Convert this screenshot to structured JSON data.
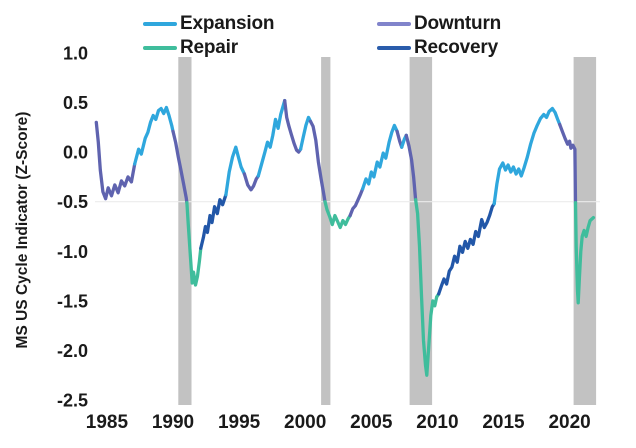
{
  "legend": {
    "items": [
      {
        "label": "Expansion",
        "phase": "expansion"
      },
      {
        "label": "Repair",
        "phase": "repair"
      },
      {
        "label": "Downturn",
        "phase": "downturn"
      },
      {
        "label": "Recovery",
        "phase": "recovery"
      }
    ]
  },
  "colors": {
    "expansion": "#2FA7DD",
    "repair": "#3FBD9C",
    "downturn": "#5F63AF",
    "downturn_legend": "#8184CB",
    "recovery": "#2257A8",
    "recovery_legend": "#2A5CAB",
    "recession_band": "#C2C2C2",
    "gridline": "#EBEBEB",
    "text": "#1A1A1A"
  },
  "chart_data": {
    "type": "line",
    "title": "",
    "xlabel": "",
    "ylabel": "MS US Cycle Indicator (Z-Score)",
    "x_ticks": [
      1985,
      1990,
      1995,
      2000,
      2005,
      2010,
      2015,
      2020
    ],
    "y_ticks": [
      {
        "v": 1.0,
        "label": "1.0"
      },
      {
        "v": 0.5,
        "label": "0.5"
      },
      {
        "v": 0.0,
        "label": "0.0"
      },
      {
        "v": -0.5,
        "label": "-0.5"
      },
      {
        "v": -1.0,
        "label": "-1.0"
      },
      {
        "v": -1.5,
        "label": "-1.5"
      },
      {
        "v": -2.0,
        "label": "-2.0"
      },
      {
        "v": -2.5,
        "label": "-2.5"
      }
    ],
    "xlim": [
      1984.1,
      2022.3
    ],
    "ylim": [
      -2.5,
      1.0
    ],
    "grid": "single horizontal reference line",
    "reference_line_y": -0.5,
    "legend_position": "top",
    "recession_bands": [
      [
        1990.4,
        1991.4
      ],
      [
        2001.2,
        2001.9
      ],
      [
        2007.9,
        2009.6
      ],
      [
        2020.3,
        2022.0
      ]
    ],
    "series": [
      {
        "phase": "downturn",
        "points": [
          [
            1984.2,
            0.3
          ],
          [
            1984.35,
            0.1
          ],
          [
            1984.5,
            -0.18
          ],
          [
            1984.7,
            -0.4
          ],
          [
            1984.9,
            -0.47
          ],
          [
            1985.1,
            -0.36
          ],
          [
            1985.35,
            -0.44
          ],
          [
            1985.6,
            -0.33
          ],
          [
            1985.85,
            -0.41
          ],
          [
            1986.1,
            -0.29
          ],
          [
            1986.35,
            -0.34
          ],
          [
            1986.6,
            -0.25
          ],
          [
            1986.85,
            -0.3
          ],
          [
            1987.1,
            -0.12
          ]
        ]
      },
      {
        "phase": "expansion",
        "points": [
          [
            1987.1,
            -0.12
          ],
          [
            1987.4,
            0.03
          ],
          [
            1987.6,
            -0.02
          ],
          [
            1987.9,
            0.14
          ],
          [
            1988.1,
            0.2
          ],
          [
            1988.3,
            0.3
          ],
          [
            1988.5,
            0.37
          ],
          [
            1988.7,
            0.33
          ],
          [
            1988.9,
            0.42
          ],
          [
            1989.1,
            0.44
          ],
          [
            1989.3,
            0.39
          ],
          [
            1989.5,
            0.45
          ],
          [
            1989.7,
            0.37
          ],
          [
            1989.9,
            0.27
          ],
          [
            1990.0,
            0.21
          ]
        ]
      },
      {
        "phase": "downturn",
        "points": [
          [
            1990.0,
            0.21
          ],
          [
            1990.2,
            0.1
          ],
          [
            1990.4,
            -0.05
          ],
          [
            1990.6,
            -0.18
          ],
          [
            1990.8,
            -0.32
          ],
          [
            1991.0,
            -0.46
          ],
          [
            1991.05,
            -0.51
          ]
        ]
      },
      {
        "phase": "repair",
        "points": [
          [
            1991.05,
            -0.51
          ],
          [
            1991.15,
            -0.72
          ],
          [
            1991.3,
            -1.02
          ],
          [
            1991.45,
            -1.32
          ],
          [
            1991.55,
            -1.21
          ],
          [
            1991.7,
            -1.34
          ],
          [
            1991.85,
            -1.25
          ],
          [
            1992.0,
            -1.1
          ],
          [
            1992.1,
            -0.97
          ]
        ]
      },
      {
        "phase": "recovery",
        "points": [
          [
            1992.1,
            -0.97
          ],
          [
            1992.3,
            -0.86
          ],
          [
            1992.45,
            -0.75
          ],
          [
            1992.6,
            -0.81
          ],
          [
            1992.8,
            -0.64
          ],
          [
            1992.95,
            -0.71
          ],
          [
            1993.15,
            -0.55
          ],
          [
            1993.35,
            -0.62
          ],
          [
            1993.55,
            -0.48
          ],
          [
            1993.75,
            -0.53
          ],
          [
            1994.0,
            -0.43
          ]
        ]
      },
      {
        "phase": "expansion",
        "points": [
          [
            1994.0,
            -0.43
          ],
          [
            1994.25,
            -0.2
          ],
          [
            1994.5,
            -0.05
          ],
          [
            1994.75,
            0.05
          ],
          [
            1994.95,
            -0.05
          ],
          [
            1995.15,
            -0.15
          ],
          [
            1995.4,
            -0.22
          ]
        ]
      },
      {
        "phase": "downturn",
        "points": [
          [
            1995.4,
            -0.22
          ],
          [
            1995.65,
            -0.33
          ],
          [
            1995.9,
            -0.38
          ],
          [
            1996.1,
            -0.34
          ],
          [
            1996.3,
            -0.27
          ],
          [
            1996.45,
            -0.24
          ]
        ]
      },
      {
        "phase": "expansion",
        "points": [
          [
            1996.45,
            -0.24
          ],
          [
            1996.7,
            -0.12
          ],
          [
            1996.95,
            0.0
          ],
          [
            1997.15,
            0.1
          ],
          [
            1997.35,
            0.05
          ],
          [
            1997.55,
            0.17
          ],
          [
            1997.75,
            0.33
          ],
          [
            1997.95,
            0.24
          ],
          [
            1998.15,
            0.38
          ],
          [
            1998.3,
            0.45
          ],
          [
            1998.45,
            0.52
          ]
        ]
      },
      {
        "phase": "downturn",
        "points": [
          [
            1998.45,
            0.52
          ],
          [
            1998.6,
            0.35
          ],
          [
            1998.75,
            0.27
          ],
          [
            1998.95,
            0.18
          ],
          [
            1999.15,
            0.09
          ],
          [
            1999.35,
            0.02
          ],
          [
            1999.5,
            0.0
          ],
          [
            1999.65,
            0.03
          ]
        ]
      },
      {
        "phase": "expansion",
        "points": [
          [
            1999.65,
            0.03
          ],
          [
            1999.85,
            0.15
          ],
          [
            2000.05,
            0.27
          ],
          [
            2000.25,
            0.35
          ],
          [
            2000.4,
            0.31
          ]
        ]
      },
      {
        "phase": "downturn",
        "points": [
          [
            2000.4,
            0.31
          ],
          [
            2000.6,
            0.26
          ],
          [
            2000.8,
            0.12
          ],
          [
            2001.0,
            -0.1
          ],
          [
            2001.2,
            -0.27
          ],
          [
            2001.4,
            -0.42
          ],
          [
            2001.5,
            -0.5
          ]
        ]
      },
      {
        "phase": "repair",
        "points": [
          [
            2001.5,
            -0.5
          ],
          [
            2001.65,
            -0.58
          ],
          [
            2001.85,
            -0.65
          ],
          [
            2002.05,
            -0.73
          ],
          [
            2002.25,
            -0.64
          ],
          [
            2002.45,
            -0.7
          ],
          [
            2002.65,
            -0.76
          ],
          [
            2002.85,
            -0.69
          ],
          [
            2003.05,
            -0.73
          ],
          [
            2003.25,
            -0.67
          ],
          [
            2003.4,
            -0.64
          ]
        ]
      },
      {
        "phase": "downturn",
        "points": [
          [
            2003.4,
            -0.64
          ],
          [
            2003.6,
            -0.57
          ],
          [
            2003.8,
            -0.54
          ],
          [
            2004.0,
            -0.48
          ],
          [
            2004.2,
            -0.42
          ],
          [
            2004.35,
            -0.37
          ]
        ]
      },
      {
        "phase": "expansion",
        "points": [
          [
            2004.35,
            -0.37
          ],
          [
            2004.6,
            -0.27
          ],
          [
            2004.8,
            -0.32
          ],
          [
            2005.0,
            -0.2
          ],
          [
            2005.2,
            -0.25
          ],
          [
            2005.45,
            -0.1
          ],
          [
            2005.65,
            -0.15
          ],
          [
            2005.9,
            -0.01
          ],
          [
            2006.1,
            -0.06
          ],
          [
            2006.35,
            0.1
          ],
          [
            2006.55,
            0.2
          ],
          [
            2006.75,
            0.27
          ],
          [
            2006.95,
            0.21
          ]
        ]
      },
      {
        "phase": "downturn",
        "points": [
          [
            2006.95,
            0.21
          ],
          [
            2007.15,
            0.11
          ],
          [
            2007.3,
            0.05
          ]
        ]
      },
      {
        "phase": "expansion",
        "points": [
          [
            2007.3,
            0.05
          ],
          [
            2007.5,
            0.13
          ],
          [
            2007.65,
            0.17
          ]
        ]
      },
      {
        "phase": "downturn",
        "points": [
          [
            2007.65,
            0.17
          ],
          [
            2007.85,
            0.06
          ],
          [
            2008.05,
            -0.08
          ],
          [
            2008.2,
            -0.25
          ],
          [
            2008.35,
            -0.48
          ]
        ]
      },
      {
        "phase": "repair",
        "points": [
          [
            2008.35,
            -0.48
          ],
          [
            2008.5,
            -0.62
          ],
          [
            2008.65,
            -0.95
          ],
          [
            2008.8,
            -1.45
          ],
          [
            2008.95,
            -1.9
          ],
          [
            2009.1,
            -2.15
          ],
          [
            2009.2,
            -2.25
          ],
          [
            2009.35,
            -1.95
          ],
          [
            2009.5,
            -1.65
          ],
          [
            2009.65,
            -1.5
          ],
          [
            2009.8,
            -1.55
          ],
          [
            2009.95,
            -1.46
          ],
          [
            2010.1,
            -1.43
          ]
        ]
      },
      {
        "phase": "recovery",
        "points": [
          [
            2010.1,
            -1.43
          ],
          [
            2010.3,
            -1.35
          ],
          [
            2010.5,
            -1.28
          ],
          [
            2010.7,
            -1.33
          ],
          [
            2010.9,
            -1.2
          ],
          [
            2011.1,
            -1.16
          ],
          [
            2011.3,
            -1.05
          ],
          [
            2011.5,
            -1.11
          ],
          [
            2011.7,
            -0.95
          ],
          [
            2011.9,
            -1.01
          ],
          [
            2012.1,
            -0.9
          ],
          [
            2012.3,
            -0.97
          ],
          [
            2012.5,
            -0.88
          ],
          [
            2012.7,
            -0.93
          ],
          [
            2012.9,
            -0.8
          ],
          [
            2013.1,
            -0.85
          ],
          [
            2013.35,
            -0.68
          ],
          [
            2013.55,
            -0.76
          ],
          [
            2013.75,
            -0.71
          ],
          [
            2013.95,
            -0.64
          ],
          [
            2014.15,
            -0.55
          ],
          [
            2014.3,
            -0.52
          ]
        ]
      },
      {
        "phase": "expansion",
        "points": [
          [
            2014.3,
            -0.52
          ],
          [
            2014.5,
            -0.32
          ],
          [
            2014.7,
            -0.17
          ],
          [
            2014.95,
            -0.11
          ],
          [
            2015.15,
            -0.18
          ],
          [
            2015.35,
            -0.13
          ],
          [
            2015.55,
            -0.2
          ],
          [
            2015.75,
            -0.15
          ],
          [
            2015.95,
            -0.22
          ],
          [
            2016.15,
            -0.17
          ],
          [
            2016.35,
            -0.24
          ],
          [
            2016.55,
            -0.16
          ],
          [
            2016.8,
            -0.05
          ],
          [
            2017.05,
            0.08
          ],
          [
            2017.3,
            0.19
          ],
          [
            2017.55,
            0.27
          ],
          [
            2017.8,
            0.34
          ],
          [
            2018.05,
            0.38
          ],
          [
            2018.25,
            0.35
          ],
          [
            2018.45,
            0.41
          ],
          [
            2018.7,
            0.44
          ],
          [
            2018.9,
            0.4
          ],
          [
            2019.1,
            0.33
          ],
          [
            2019.25,
            0.28
          ]
        ]
      },
      {
        "phase": "downturn",
        "points": [
          [
            2019.25,
            0.28
          ],
          [
            2019.45,
            0.21
          ],
          [
            2019.65,
            0.14
          ],
          [
            2019.85,
            0.08
          ],
          [
            2020.0,
            0.11
          ],
          [
            2020.1,
            0.04
          ],
          [
            2020.25,
            0.07
          ],
          [
            2020.4,
            0.03
          ],
          [
            2020.45,
            -0.51
          ]
        ]
      },
      {
        "phase": "repair",
        "points": [
          [
            2020.45,
            -0.51
          ],
          [
            2020.5,
            -0.95
          ],
          [
            2020.6,
            -1.4
          ],
          [
            2020.65,
            -1.52
          ],
          [
            2020.75,
            -1.25
          ],
          [
            2020.85,
            -1.0
          ],
          [
            2020.95,
            -0.85
          ],
          [
            2021.1,
            -0.79
          ],
          [
            2021.25,
            -0.85
          ],
          [
            2021.4,
            -0.76
          ],
          [
            2021.55,
            -0.69
          ],
          [
            2021.8,
            -0.66
          ]
        ]
      }
    ]
  }
}
